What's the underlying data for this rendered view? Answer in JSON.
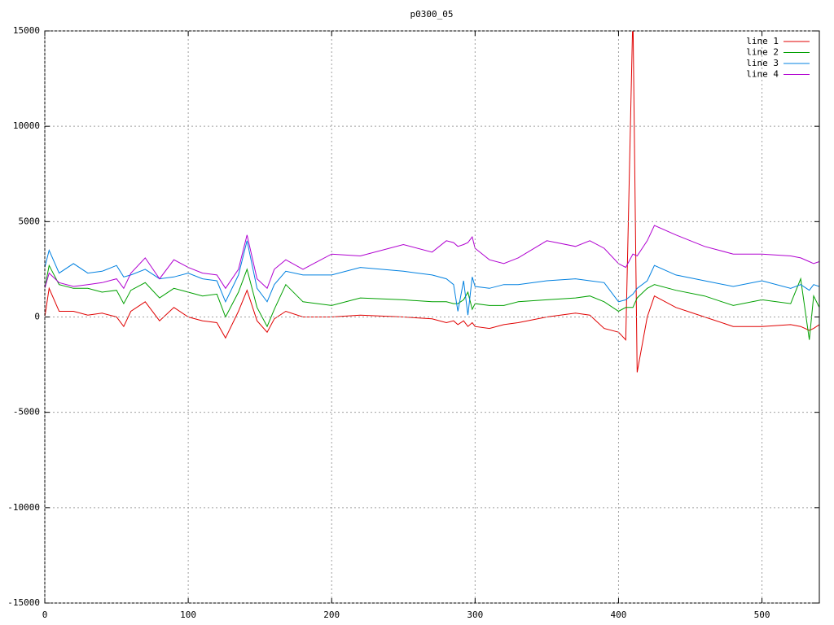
{
  "chart_data": {
    "type": "line",
    "title": "p0300_05",
    "x": [
      0,
      3,
      10,
      20,
      30,
      40,
      50,
      55,
      60,
      70,
      80,
      90,
      100,
      110,
      120,
      126,
      135,
      141,
      148,
      155,
      160,
      168,
      180,
      200,
      220,
      250,
      270,
      280,
      285,
      288,
      292,
      295,
      298,
      300,
      310,
      320,
      330,
      350,
      370,
      380,
      390,
      400,
      405,
      410,
      413,
      420,
      425,
      440,
      460,
      480,
      500,
      520,
      527,
      533,
      536,
      540
    ],
    "series": [
      {
        "name": "line 1",
        "color": "#e00000",
        "values": [
          0,
          1500,
          300,
          300,
          100,
          200,
          0,
          -500,
          300,
          800,
          -200,
          500,
          0,
          -200,
          -300,
          -1100,
          300,
          1400,
          -200,
          -800,
          -100,
          300,
          0,
          0,
          100,
          0,
          -100,
          -300,
          -200,
          -400,
          -200,
          -500,
          -300,
          -500,
          -600,
          -400,
          -300,
          0,
          200,
          100,
          -600,
          -800,
          -1200,
          16000,
          -2900,
          0,
          1100,
          500,
          0,
          -500,
          -500,
          -400,
          -500,
          -700,
          -600,
          -400
        ]
      },
      {
        "name": "line 2",
        "color": "#00a000",
        "values": [
          1500,
          2700,
          1700,
          1500,
          1500,
          1300,
          1400,
          700,
          1400,
          1800,
          1000,
          1500,
          1300,
          1100,
          1200,
          0,
          1300,
          2500,
          500,
          -500,
          400,
          1700,
          800,
          600,
          1000,
          900,
          800,
          800,
          700,
          700,
          900,
          1300,
          400,
          700,
          600,
          600,
          800,
          900,
          1000,
          1100,
          800,
          300,
          500,
          500,
          1000,
          1500,
          1700,
          1400,
          1100,
          600,
          900,
          700,
          2000,
          -1200,
          1100,
          500
        ]
      },
      {
        "name": "line 3",
        "color": "#0080e0",
        "values": [
          2600,
          3500,
          2300,
          2800,
          2300,
          2400,
          2700,
          2100,
          2200,
          2500,
          2000,
          2100,
          2300,
          2000,
          1900,
          800,
          2200,
          4000,
          1500,
          800,
          1700,
          2400,
          2200,
          2200,
          2600,
          2400,
          2200,
          2000,
          1700,
          300,
          1900,
          100,
          2100,
          1600,
          1500,
          1700,
          1700,
          1900,
          2000,
          1900,
          1800,
          800,
          900,
          1200,
          1500,
          1900,
          2700,
          2200,
          1900,
          1600,
          1900,
          1500,
          1700,
          1400,
          1700,
          1600
        ]
      },
      {
        "name": "line 4",
        "color": "#b000d0",
        "values": [
          1500,
          2300,
          1800,
          1600,
          1700,
          1800,
          2000,
          1500,
          2300,
          3100,
          2000,
          3000,
          2600,
          2300,
          2200,
          1500,
          2500,
          4300,
          2000,
          1500,
          2500,
          3000,
          2500,
          3300,
          3200,
          3800,
          3400,
          4000,
          3900,
          3700,
          3800,
          3900,
          4200,
          3600,
          3000,
          2800,
          3100,
          4000,
          3700,
          4000,
          3600,
          2800,
          2600,
          3300,
          3200,
          4000,
          4800,
          4300,
          3700,
          3300,
          3300,
          3200,
          3100,
          2900,
          2800,
          2900
        ]
      }
    ],
    "xlim": [
      0,
      540
    ],
    "xticks": [
      0,
      100,
      200,
      300,
      400,
      500
    ],
    "ylim": [
      -15000,
      15000
    ],
    "yticks": [
      -15000,
      -10000,
      -5000,
      0,
      5000,
      10000,
      15000
    ],
    "grid": true,
    "legend": "top-right"
  }
}
